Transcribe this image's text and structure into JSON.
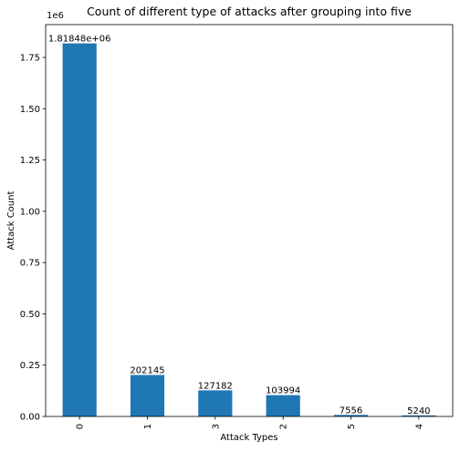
{
  "chart_data": {
    "type": "bar",
    "title": "Count of different type of attacks after grouping into five",
    "xlabel": "Attack Types",
    "ylabel": "Attack Count",
    "categories": [
      "0",
      "1",
      "3",
      "2",
      "5",
      "4"
    ],
    "values": [
      1818480,
      202145,
      127182,
      103994,
      7556,
      5240
    ],
    "data_labels": [
      "1.81848e+06",
      "202145",
      "127182",
      "103994",
      "7556",
      "5240"
    ],
    "ylim": [
      0,
      1910000
    ],
    "y_scale_label": "1e6",
    "y_ticks": [
      0,
      250000,
      500000,
      750000,
      1000000,
      1250000,
      1500000,
      1750000
    ],
    "y_tick_labels": [
      "0.00",
      "0.25",
      "0.50",
      "0.75",
      "1.00",
      "1.25",
      "1.50",
      "1.75"
    ],
    "x_tick_rotation": "vertical",
    "grid": false,
    "legend": "none",
    "bar_color": "#1f77b4"
  }
}
